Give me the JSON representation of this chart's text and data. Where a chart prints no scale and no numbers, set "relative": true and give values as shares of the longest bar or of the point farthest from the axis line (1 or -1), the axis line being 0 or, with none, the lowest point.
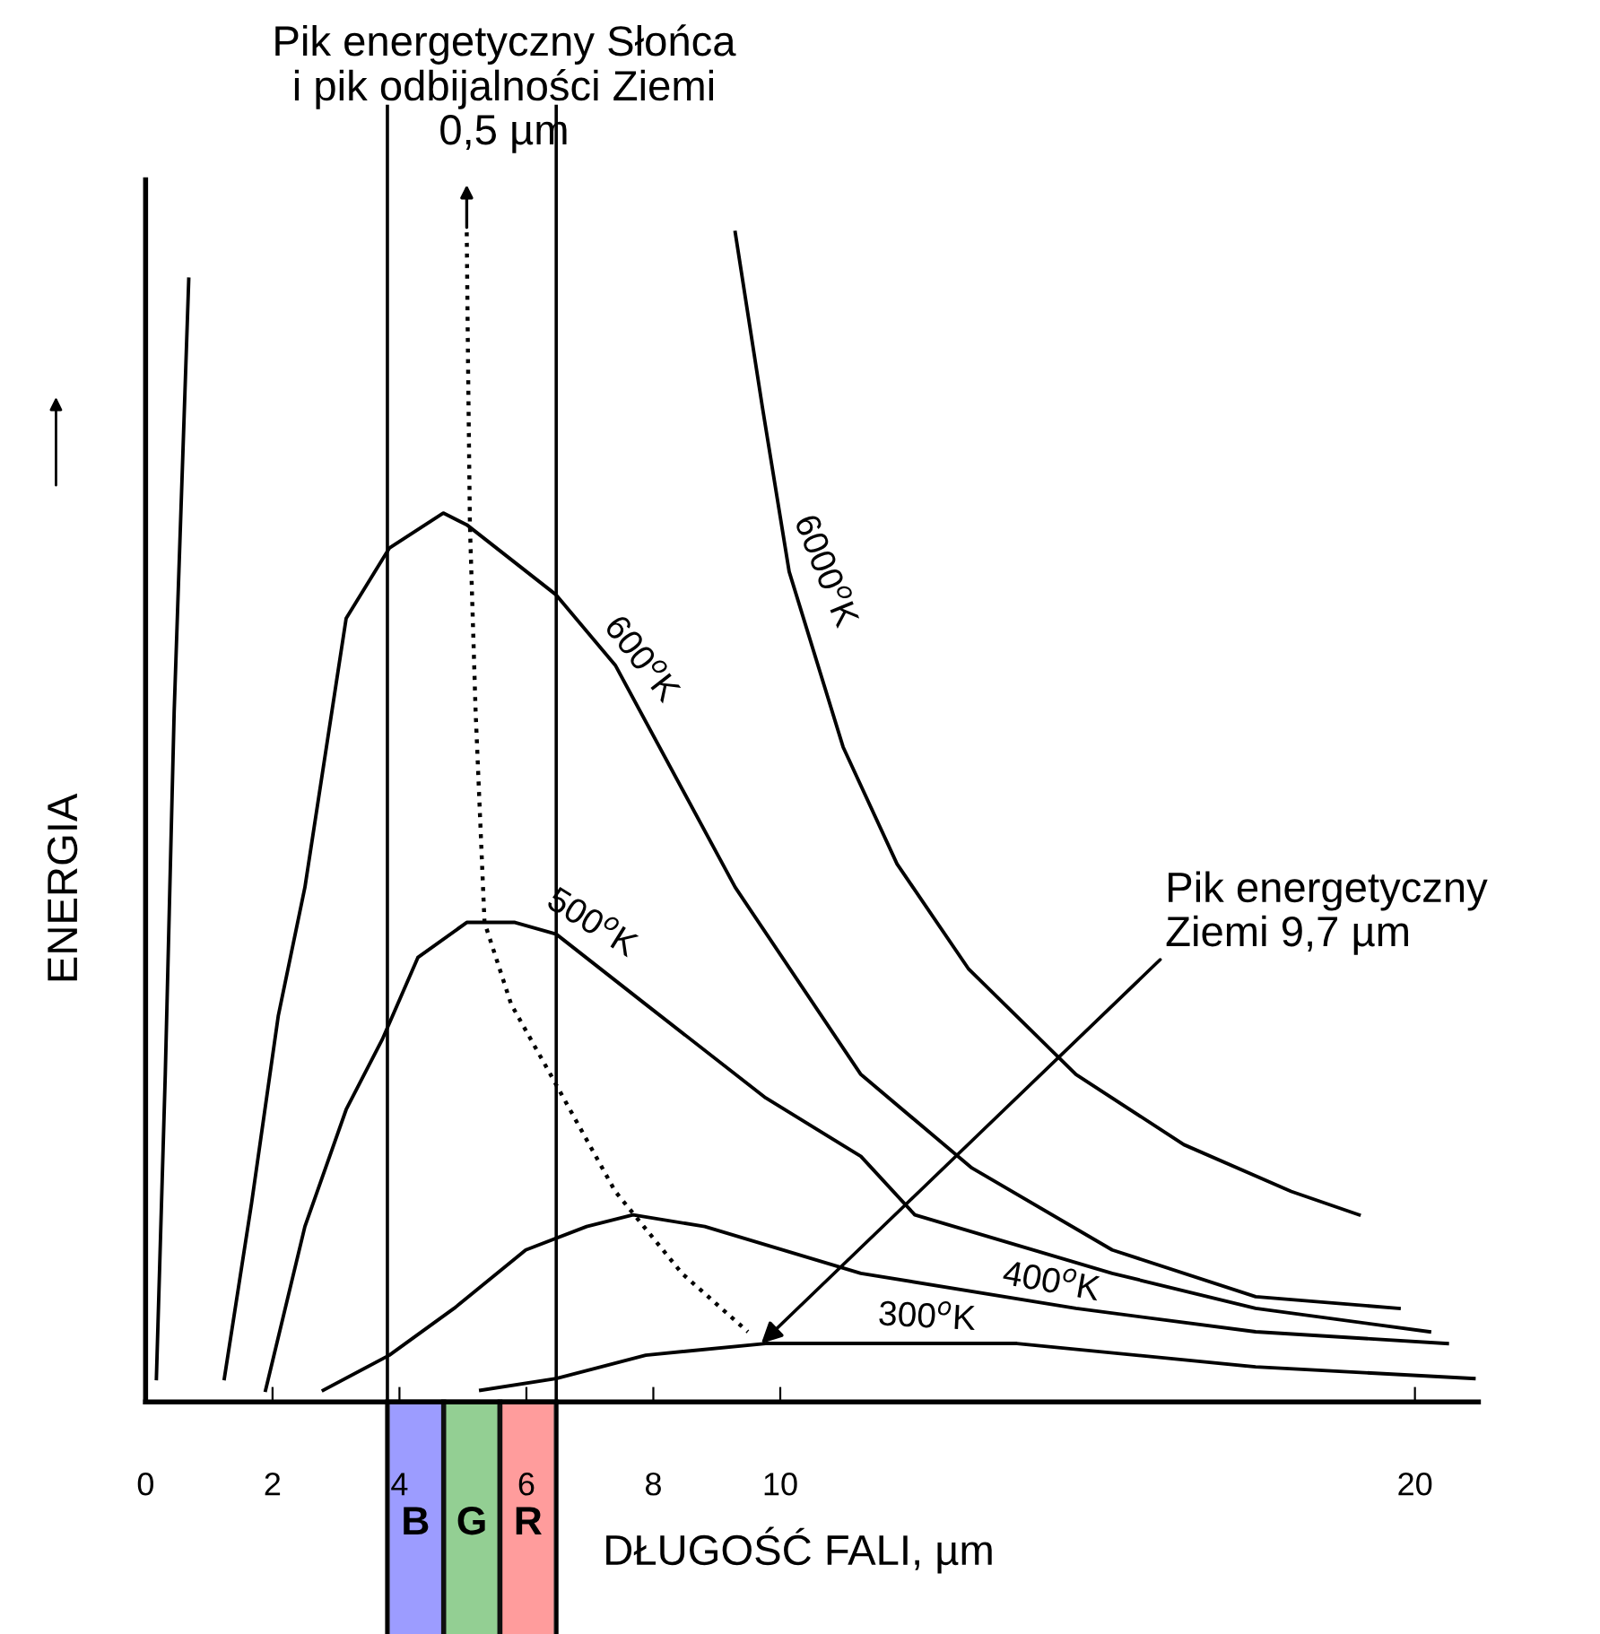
{
  "chart_data": {
    "type": "line",
    "relative": true,
    "title": "Pik energetyczny Słońca\ni pik odbijalności Ziemi\n0,5 µm",
    "xlabel": "DŁUGOŚĆ FALI, µm",
    "ylabel": "ENERGIA",
    "xlim": [
      0,
      21
    ],
    "xticks": [
      0,
      2,
      4,
      6,
      8,
      10,
      20
    ],
    "tick_labels": "x",
    "grid": false,
    "legend": false,
    "marker": "none",
    "annotations": [
      {
        "text": "Pik energetyczny\nZiemi 9,7 µm",
        "x": 9.7,
        "y": 0.05
      },
      "B",
      "G",
      "R"
    ],
    "ref_lines": [
      {
        "axis": "x",
        "value": 3.81,
        "label": null,
        "color": "#000000"
      },
      {
        "axis": "x",
        "value": 6.47,
        "label": null,
        "color": "#000000"
      }
    ],
    "series": [
      {
        "name": "6000$^{o}$K",
        "color": "#000000",
        "line_style": "solid",
        "x": [
          0.17,
          0.31,
          0.45,
          0.68,
          5.0,
          9.29,
          9.72,
          10.14,
          10.99,
          11.84,
          12.97,
          14.66,
          16.36,
          18.05,
          19.12
        ],
        "values": [
          0.02,
          0.28,
          0.59,
          0.96,
          null,
          1.0,
          0.85,
          0.71,
          0.56,
          0.46,
          0.37,
          0.28,
          0.22,
          0.18,
          0.16
        ]
      },
      {
        "name": "600$^{o}$K",
        "color": "#000000",
        "line_style": "solid",
        "x": [
          1.24,
          1.67,
          2.09,
          2.51,
          3.16,
          3.84,
          4.69,
          5.06,
          6.47,
          7.4,
          9.29,
          11.27,
          13.02,
          15.23,
          17.49,
          19.75
        ],
        "values": [
          0.02,
          0.17,
          0.33,
          0.44,
          0.67,
          0.73,
          0.76,
          0.75,
          0.69,
          0.63,
          0.44,
          0.28,
          0.2,
          0.13,
          0.09,
          0.08
        ]
      },
      {
        "name": "500$^{o}$K",
        "color": "#000000",
        "line_style": "solid",
        "x": [
          1.89,
          2.51,
          3.16,
          3.73,
          4.29,
          5.06,
          5.82,
          6.47,
          7.88,
          9.77,
          11.27,
          12.12,
          15.23,
          17.49,
          20.23
        ],
        "values": [
          0.01,
          0.15,
          0.25,
          0.31,
          0.38,
          0.41,
          0.41,
          0.4,
          0.34,
          0.26,
          0.21,
          0.16,
          0.11,
          0.08,
          0.06
        ]
      },
      {
        "name": "400$^{o}$K",
        "color": "#000000",
        "line_style": "solid",
        "x": [
          2.8,
          3.84,
          4.86,
          5.99,
          6.95,
          7.68,
          8.81,
          11.27,
          14.66,
          17.49,
          20.51
        ],
        "values": [
          0.01,
          0.04,
          0.08,
          0.13,
          0.15,
          0.16,
          0.15,
          0.11,
          0.08,
          0.06,
          0.05
        ]
      },
      {
        "name": "300$^{o}$K",
        "color": "#000000",
        "line_style": "solid",
        "x": [
          5.28,
          6.47,
          7.88,
          9.77,
          11.84,
          13.73,
          17.49,
          20.93
        ],
        "values": [
          0.01,
          0.02,
          0.04,
          0.05,
          0.05,
          0.05,
          0.03,
          0.02
        ]
      },
      {
        "color": "#000000",
        "line_style": "dotted",
        "x": [
          5.06,
          5.08,
          5.11,
          5.2,
          5.34,
          5.76,
          6.38,
          7.4,
          8.45,
          9.49
        ],
        "values": [
          1.0,
          0.89,
          0.75,
          0.59,
          0.41,
          0.34,
          0.28,
          0.18,
          0.11,
          0.06
        ]
      }
    ]
  }
}
